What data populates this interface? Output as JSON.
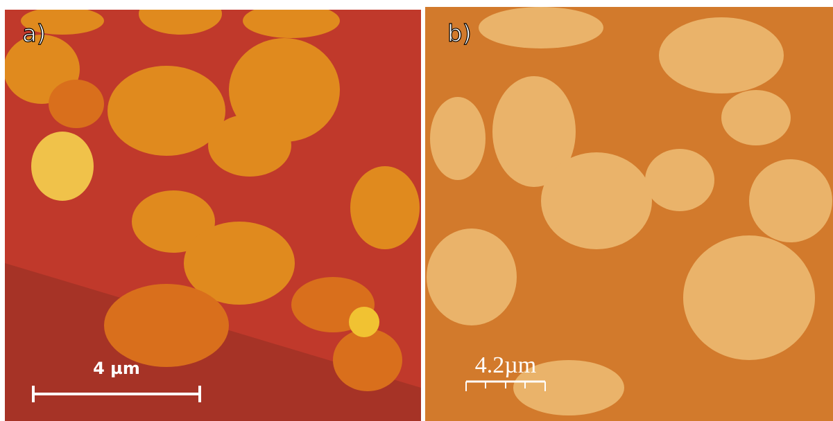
{
  "panels": [
    {
      "label": "a)",
      "scale_bar": "4 µm"
    },
    {
      "label": "b)",
      "scale_bar": "4.2µm"
    }
  ]
}
